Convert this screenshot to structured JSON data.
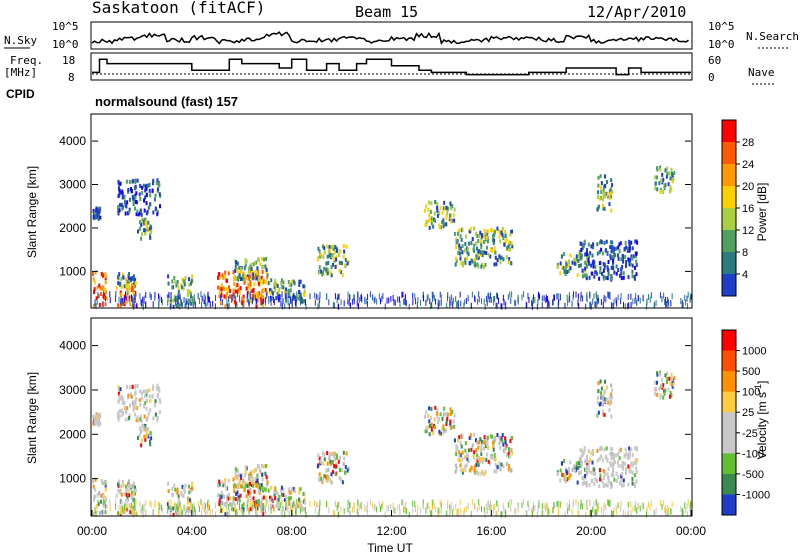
{
  "header": {
    "station": "Saskatoon (fitACF)",
    "beam": "Beam 15",
    "date": "12/Apr/2010"
  },
  "status_panels": {
    "nsky_label": "N.Sky",
    "nsky_ticks": [
      "10^5",
      "10^0"
    ],
    "nsearch_label": "N.Search",
    "nsearch_ticks": [
      "10^5",
      "10^0"
    ],
    "freq_label": "Freq.",
    "freq_unit": "[MHz]",
    "freq_ticks": [
      "18",
      "8"
    ],
    "nave_label": "Nave",
    "nave_ticks": [
      "60",
      "0"
    ],
    "cpid_label": "CPID",
    "cpid_value": "normalsound (fast) 157"
  },
  "chart_data": [
    {
      "type": "heatmap",
      "name": "power",
      "ylabel": "Slant Range [km]",
      "ylim": [
        180,
        4600
      ],
      "yticks": [
        "1000",
        "2000",
        "3000",
        "4000"
      ],
      "colorbar_label": "Power [dB]",
      "colorbar_ticks": [
        "28",
        "24",
        "20",
        "16",
        "12",
        "8",
        "4"
      ],
      "colors": [
        "#ff0000",
        "#ff5a00",
        "#ff9a00",
        "#ffd000",
        "#a8d040",
        "#50a060",
        "#2a7a80",
        "#1e3ec8",
        "#1400ff"
      ],
      "regions": [
        {
          "t": [
            0.0,
            0.55
          ],
          "r": [
            200,
            1000
          ],
          "level": "high"
        },
        {
          "t": [
            0.0,
            0.3
          ],
          "r": [
            2200,
            2450
          ],
          "level": "low"
        },
        {
          "t": [
            0.95,
            1.75
          ],
          "r": [
            650,
            950
          ],
          "level": "mid"
        },
        {
          "t": [
            0.95,
            1.75
          ],
          "r": [
            180,
            700
          ],
          "level": "high"
        },
        {
          "t": [
            1.0,
            2.7
          ],
          "r": [
            2300,
            3100
          ],
          "level": "low"
        },
        {
          "t": [
            1.8,
            2.4
          ],
          "r": [
            1700,
            2200
          ],
          "level": "mid"
        },
        {
          "t": [
            3.0,
            4.0
          ],
          "r": [
            180,
            900
          ],
          "level": "mid"
        },
        {
          "t": [
            5.0,
            7.0
          ],
          "r": [
            180,
            1000
          ],
          "level": "high"
        },
        {
          "t": [
            5.5,
            7.0
          ],
          "r": [
            800,
            1300
          ],
          "level": "mid"
        },
        {
          "t": [
            7.0,
            8.5
          ],
          "r": [
            300,
            800
          ],
          "level": "mid"
        },
        {
          "t": [
            9.0,
            10.3
          ],
          "r": [
            900,
            1600
          ],
          "level": "mid"
        },
        {
          "t": [
            13.3,
            14.5
          ],
          "r": [
            2000,
            2600
          ],
          "level": "mid"
        },
        {
          "t": [
            14.5,
            16.8
          ],
          "r": [
            1100,
            2000
          ],
          "level": "mid"
        },
        {
          "t": [
            18.6,
            19.8
          ],
          "r": [
            900,
            1400
          ],
          "level": "mid"
        },
        {
          "t": [
            19.5,
            21.8
          ],
          "r": [
            800,
            1700
          ],
          "level": "low"
        },
        {
          "t": [
            20.2,
            20.8
          ],
          "r": [
            2400,
            3200
          ],
          "level": "mid"
        },
        {
          "t": [
            22.5,
            23.3
          ],
          "r": [
            2800,
            3400
          ],
          "level": "mid"
        }
      ]
    },
    {
      "type": "heatmap",
      "name": "velocity",
      "ylabel": "Slant Range [km]",
      "ylim": [
        180,
        4600
      ],
      "yticks": [
        "1000",
        "2000",
        "3000",
        "4000"
      ],
      "colorbar_label": "Velocity [m s",
      "colorbar_label_sup": "-1",
      "colorbar_label_end": "]",
      "colorbar_ticks": [
        "1000",
        "500",
        "100",
        "25",
        "-25",
        "-100",
        "-500",
        "-1000"
      ],
      "colors": [
        "#ff0000",
        "#ff5000",
        "#ff9000",
        "#ffcc40",
        "#c8c8c8",
        "#c8c8c8",
        "#60c030",
        "#3a8a50",
        "#1e3ec8"
      ],
      "xlabel": "Time UT",
      "xticks": [
        "00:00",
        "04:00",
        "08:00",
        "12:00",
        "16:00",
        "20:00",
        "00:00"
      ],
      "xlim": [
        0,
        24
      ]
    }
  ],
  "status_series": {
    "nsky": [
      0.3,
      0.5,
      0.8,
      0.4,
      0.6,
      0.3,
      0.5,
      0.9,
      0.3,
      0.4,
      0.6,
      0.3,
      0.5,
      0.8,
      0.3,
      0.4,
      0.6,
      0.5,
      0.4,
      0.7,
      0.3,
      0.5,
      0.6,
      0.4
    ],
    "freq": [
      {
        "t": [
          0,
          0.3
        ],
        "v": 11
      },
      {
        "t": [
          0.3,
          0.6
        ],
        "v": 17
      },
      {
        "t": [
          0.6,
          4.0
        ],
        "v": 15
      },
      {
        "t": [
          4.0,
          5.5
        ],
        "v": 12
      },
      {
        "t": [
          5.5,
          6.0
        ],
        "v": 17
      },
      {
        "t": [
          6.0,
          7.5
        ],
        "v": 15
      },
      {
        "t": [
          7.5,
          8.0
        ],
        "v": 13
      },
      {
        "t": [
          8.0,
          8.6
        ],
        "v": 17
      },
      {
        "t": [
          8.6,
          9.4
        ],
        "v": 12
      },
      {
        "t": [
          9.4,
          9.9
        ],
        "v": 15
      },
      {
        "t": [
          9.9,
          10.6
        ],
        "v": 12
      },
      {
        "t": [
          10.6,
          11.0
        ],
        "v": 15
      },
      {
        "t": [
          11.0,
          12.0
        ],
        "v": 17
      },
      {
        "t": [
          12.0,
          13.1
        ],
        "v": 14
      },
      {
        "t": [
          13.1,
          13.6
        ],
        "v": 12
      },
      {
        "t": [
          13.6,
          15.0
        ],
        "v": 11
      },
      {
        "t": [
          15.0,
          17.5
        ],
        "v": 10
      },
      {
        "t": [
          17.5,
          19.0
        ],
        "v": 11
      },
      {
        "t": [
          19.0,
          21.0
        ],
        "v": 13
      },
      {
        "t": [
          21.0,
          21.5
        ],
        "v": 10
      },
      {
        "t": [
          21.5,
          22.0
        ],
        "v": 13
      },
      {
        "t": [
          22.0,
          24.0
        ],
        "v": 11
      }
    ],
    "nave_level": 12
  }
}
